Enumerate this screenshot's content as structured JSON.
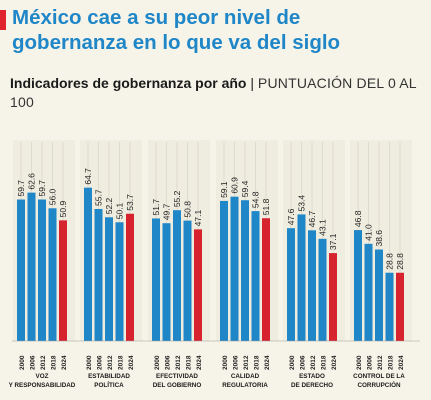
{
  "header": {
    "title_line1": "México cae a su peor nivel de",
    "title_line2": "gobernanza en lo que va del siglo",
    "subtitle_bold": "Indicadores de gobernanza por año",
    "subtitle_separator": " | ",
    "subtitle_light": "PUNTUACIÓN DEL 0 AL 100"
  },
  "colors": {
    "accent": "#e0232c",
    "title": "#1f86c8",
    "bar_blue": "#1f86c8",
    "bar_red": "#d7232e",
    "background": "#f6f4e8",
    "panel_grid": "#cfcbbb"
  },
  "chart_data": {
    "type": "bar",
    "years": [
      "2000",
      "2006",
      "2012",
      "2018",
      "2024"
    ],
    "groups": [
      {
        "label_lines": [
          "VOZ",
          "Y RESPONSABILIDAD"
        ],
        "values": [
          59.7,
          62.6,
          59.7,
          56.0,
          50.9
        ]
      },
      {
        "label_lines": [
          "ESTABILIDAD",
          "POLÍTICA"
        ],
        "values": [
          64.7,
          55.7,
          52.2,
          50.1,
          53.7
        ]
      },
      {
        "label_lines": [
          "EFECTIVIDAD",
          "DEL GOBIERNO"
        ],
        "values": [
          51.7,
          49.7,
          55.2,
          50.8,
          47.1
        ]
      },
      {
        "label_lines": [
          "CALIDAD",
          "REGULATORIA"
        ],
        "values": [
          59.1,
          60.9,
          59.4,
          54.8,
          51.8
        ]
      },
      {
        "label_lines": [
          "ESTADO",
          "DE DERECHO"
        ],
        "values": [
          47.6,
          53.4,
          46.7,
          43.1,
          37.1
        ]
      },
      {
        "label_lines": [
          "CONTROL DE LA",
          "CORRUPCIÓN"
        ],
        "values": [
          46.8,
          41.0,
          38.6,
          28.8,
          28.8
        ]
      }
    ],
    "highlight_year": "2024",
    "ylim": [
      0,
      100
    ],
    "grid": false,
    "legend": "none"
  }
}
